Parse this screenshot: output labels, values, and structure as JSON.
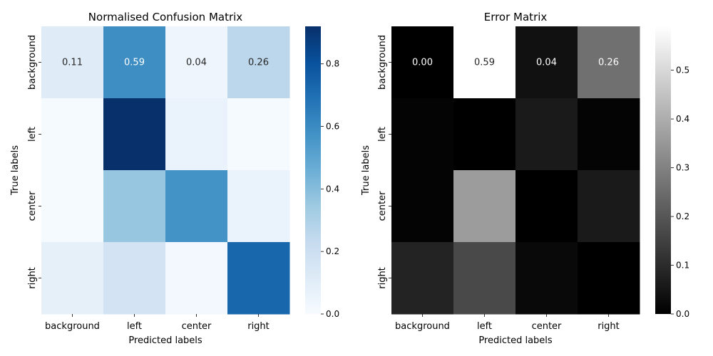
{
  "chart_data": [
    {
      "type": "heatmap",
      "title": "Normalised Confusion Matrix",
      "xlabel": "Predicted labels",
      "ylabel": "True labels",
      "x_categories": [
        "background",
        "left",
        "center",
        "right"
      ],
      "y_categories": [
        "background",
        "left",
        "center",
        "right"
      ],
      "values": [
        [
          0.11,
          0.59,
          0.04,
          0.26
        ],
        [
          0.01,
          0.92,
          0.06,
          0.01
        ],
        [
          0.01,
          0.36,
          0.57,
          0.06
        ],
        [
          0.08,
          0.17,
          0.02,
          0.73
        ]
      ],
      "annotations": [
        [
          "0.11",
          "0.59",
          "0.04",
          "0.26"
        ],
        null,
        null,
        null
      ],
      "colormap": "Blues",
      "colormap_stops": [
        "#f7fbff",
        "#deebf7",
        "#c6dbef",
        "#9ecae1",
        "#6baed6",
        "#4292c6",
        "#2171b5",
        "#08519c",
        "#08306b"
      ],
      "colorbar_range": [
        0,
        0.92
      ],
      "colorbar_ticks": [
        "0.0",
        "0.2",
        "0.4",
        "0.6",
        "0.8"
      ]
    },
    {
      "type": "heatmap",
      "title": "Error Matrix",
      "xlabel": "Predicted labels",
      "ylabel": "True labels",
      "x_categories": [
        "background",
        "left",
        "center",
        "right"
      ],
      "y_categories": [
        "background",
        "left",
        "center",
        "right"
      ],
      "values": [
        [
          0.0,
          0.59,
          0.04,
          0.26
        ],
        [
          0.01,
          0.0,
          0.06,
          0.01
        ],
        [
          0.01,
          0.36,
          0.0,
          0.06
        ],
        [
          0.08,
          0.17,
          0.02,
          0.0
        ]
      ],
      "annotations": [
        [
          "0.00",
          "0.59",
          "0.04",
          "0.26"
        ],
        null,
        null,
        null
      ],
      "colormap": "gray",
      "colormap_stops": [
        "#000000",
        "#ffffff"
      ],
      "colorbar_range": [
        0,
        0.59
      ],
      "colorbar_ticks": [
        "0.0",
        "0.1",
        "0.2",
        "0.3",
        "0.4",
        "0.5"
      ]
    }
  ]
}
